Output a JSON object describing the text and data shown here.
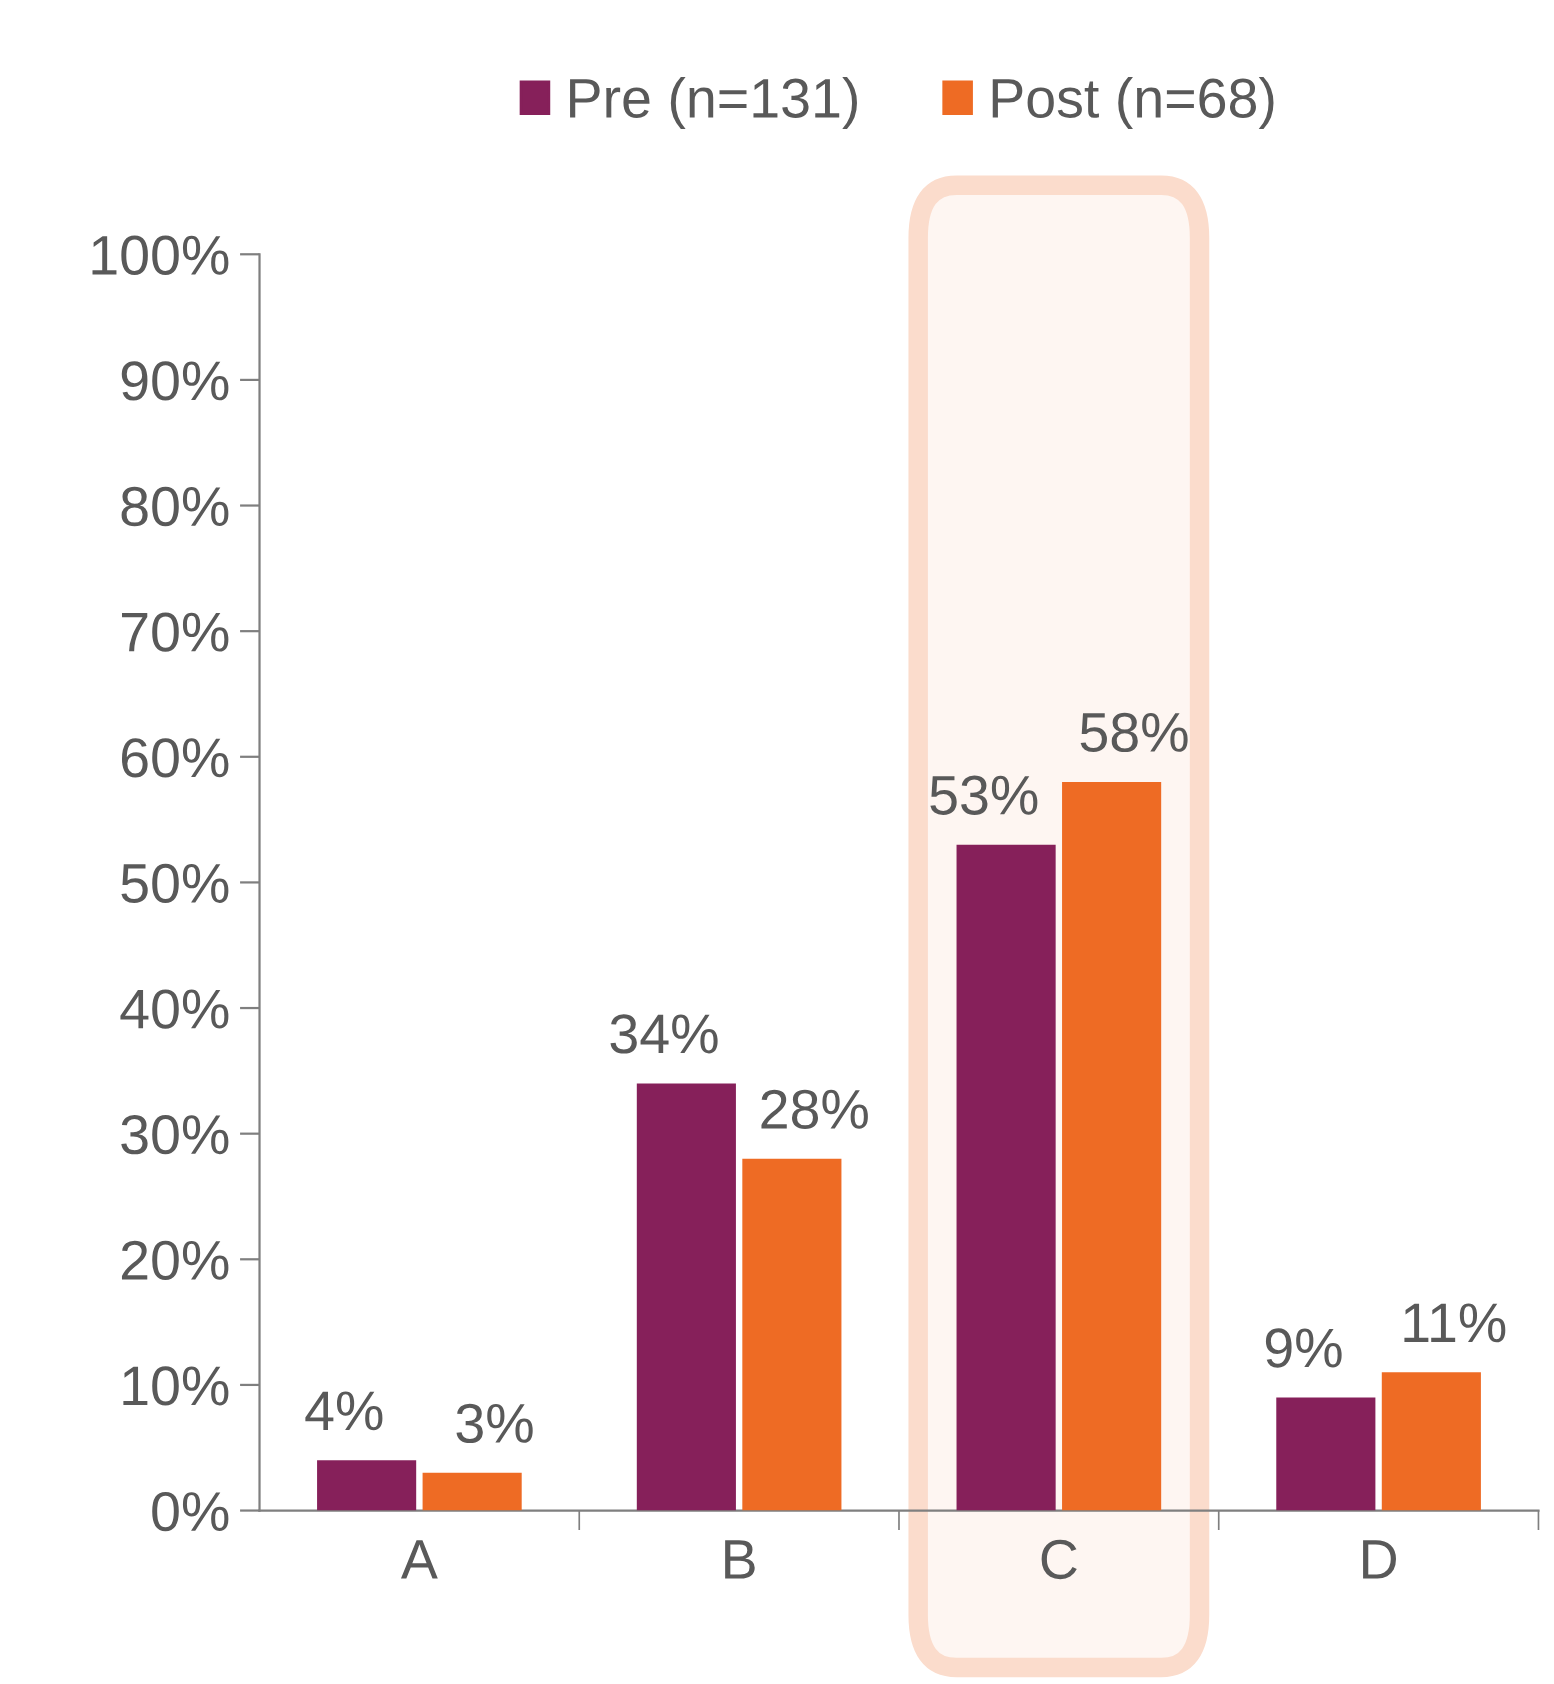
{
  "chart_data": {
    "type": "bar",
    "categories": [
      "A",
      "B",
      "C",
      "D"
    ],
    "series": [
      {
        "name": "Pre (n=131)",
        "color": "#86205a",
        "values": [
          4,
          34,
          53,
          9
        ]
      },
      {
        "name": "Post (n=68)",
        "color": "#ee6b24",
        "values": [
          3,
          28,
          58,
          11
        ]
      }
    ],
    "ylim": [
      0,
      100
    ],
    "yticks": [
      {
        "value": 0,
        "label": "0%"
      },
      {
        "value": 10,
        "label": "10%"
      },
      {
        "value": 20,
        "label": "20%"
      },
      {
        "value": 30,
        "label": "30%"
      },
      {
        "value": 40,
        "label": "40%"
      },
      {
        "value": 50,
        "label": "50%"
      },
      {
        "value": 60,
        "label": "60%"
      },
      {
        "value": 70,
        "label": "70%"
      },
      {
        "value": 80,
        "label": "80%"
      },
      {
        "value": 90,
        "label": "90%"
      },
      {
        "value": 100,
        "label": "100%"
      }
    ],
    "value_labels": [
      [
        "4%",
        "34%",
        "53%",
        "9%"
      ],
      [
        "3%",
        "28%",
        "58%",
        "11%"
      ]
    ],
    "bands": [
      {
        "axis": "x",
        "from": "C",
        "to": "C",
        "color": "#fbdccc"
      }
    ],
    "legend": "top",
    "grid": false
  }
}
